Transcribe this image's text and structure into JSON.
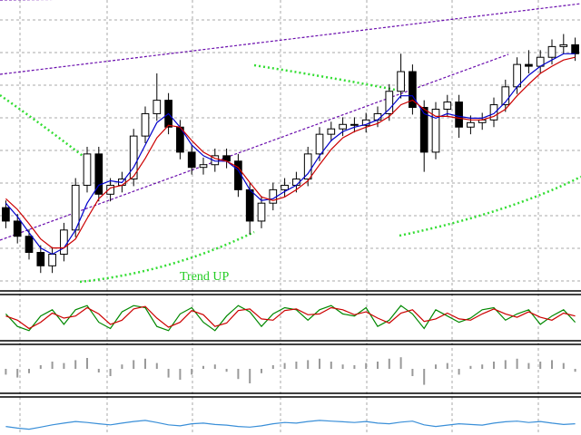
{
  "chart_data": [
    {
      "type": "candlestick",
      "annotation": "Trend UP",
      "ylim": [
        0,
        320
      ],
      "open": [
        90,
        75,
        58,
        40,
        25,
        38,
        65,
        115,
        150,
        105,
        115,
        122,
        170,
        195,
        210,
        180,
        152,
        135,
        138,
        148,
        142,
        110,
        75,
        95,
        110,
        115,
        122,
        150,
        172,
        178,
        183,
        182,
        188,
        195,
        220,
        242,
        202,
        152,
        200,
        208,
        180,
        185,
        188,
        205,
        225,
        250,
        248,
        258,
        270,
        272
      ],
      "high": [
        98,
        83,
        66,
        48,
        46,
        73,
        123,
        158,
        158,
        123,
        130,
        178,
        203,
        240,
        218,
        188,
        160,
        146,
        156,
        156,
        150,
        118,
        103,
        118,
        123,
        130,
        158,
        180,
        186,
        191,
        191,
        196,
        203,
        228,
        262,
        250,
        210,
        208,
        216,
        216,
        193,
        196,
        213,
        233,
        258,
        266,
        266,
        278,
        284,
        280
      ],
      "low": [
        67,
        50,
        32,
        17,
        17,
        30,
        57,
        107,
        97,
        97,
        107,
        114,
        162,
        187,
        172,
        144,
        127,
        127,
        130,
        134,
        102,
        60,
        67,
        87,
        102,
        107,
        114,
        142,
        164,
        170,
        174,
        174,
        180,
        187,
        212,
        194,
        130,
        144,
        192,
        168,
        172,
        177,
        180,
        197,
        217,
        240,
        240,
        250,
        262,
        254
      ],
      "close": [
        75,
        58,
        40,
        25,
        38,
        65,
        115,
        150,
        105,
        115,
        122,
        170,
        195,
        210,
        180,
        152,
        135,
        138,
        148,
        142,
        110,
        75,
        95,
        110,
        115,
        122,
        150,
        172,
        178,
        183,
        182,
        188,
        195,
        220,
        242,
        202,
        152,
        200,
        208,
        180,
        185,
        188,
        205,
        225,
        250,
        248,
        258,
        270,
        272,
        262
      ],
      "series": [
        {
          "color": "#0000cc",
          "values": [
            95,
            80,
            62,
            45,
            38,
            45,
            65,
            95,
            115,
            120,
            118,
            135,
            160,
            185,
            195,
            180,
            160,
            148,
            142,
            142,
            132,
            110,
            98,
            100,
            108,
            115,
            128,
            148,
            165,
            175,
            180,
            183,
            188,
            200,
            215,
            215,
            195,
            190,
            195,
            192,
            190,
            190,
            195,
            208,
            225,
            238,
            248,
            255,
            262,
            262
          ]
        },
        {
          "color": "#cc0000",
          "values": [
            100,
            88,
            72,
            55,
            45,
            45,
            55,
            78,
            100,
            112,
            115,
            125,
            145,
            168,
            182,
            180,
            165,
            152,
            145,
            142,
            135,
            118,
            102,
            98,
            102,
            110,
            120,
            138,
            155,
            168,
            175,
            180,
            184,
            192,
            205,
            210,
            200,
            192,
            192,
            190,
            188,
            188,
            192,
            200,
            215,
            228,
            240,
            248,
            255,
            258
          ]
        }
      ]
    },
    {
      "type": "line",
      "ylim": [
        0,
        100
      ],
      "series": [
        {
          "color": "#008800",
          "values": [
            60,
            30,
            20,
            55,
            70,
            35,
            70,
            80,
            40,
            25,
            65,
            80,
            75,
            30,
            20,
            60,
            75,
            40,
            20,
            55,
            80,
            65,
            30,
            60,
            75,
            70,
            45,
            70,
            80,
            60,
            55,
            75,
            30,
            45,
            80,
            60,
            25,
            70,
            55,
            40,
            50,
            70,
            75,
            45,
            60,
            70,
            35,
            55,
            70,
            40
          ]
        },
        {
          "color": "#cc0000",
          "values": [
            55,
            45,
            25,
            40,
            62,
            50,
            55,
            75,
            60,
            35,
            45,
            72,
            78,
            50,
            28,
            40,
            68,
            58,
            30,
            38,
            68,
            72,
            48,
            45,
            68,
            72,
            58,
            60,
            75,
            70,
            58,
            65,
            50,
            38,
            62,
            70,
            42,
            48,
            62,
            48,
            45,
            60,
            72,
            60,
            52,
            65,
            52,
            45,
            62,
            55
          ]
        }
      ]
    },
    {
      "type": "bar",
      "ylim": [
        -30,
        30
      ],
      "color": "#999999",
      "values": [
        -8,
        -12,
        -6,
        5,
        10,
        8,
        12,
        15,
        -5,
        -10,
        6,
        12,
        14,
        8,
        -12,
        -15,
        -8,
        4,
        6,
        -4,
        -14,
        -20,
        -6,
        5,
        8,
        10,
        12,
        14,
        10,
        6,
        5,
        8,
        10,
        14,
        16,
        -10,
        -22,
        6,
        8,
        -8,
        4,
        6,
        10,
        12,
        14,
        8,
        10,
        12,
        8,
        -4
      ]
    },
    {
      "type": "line",
      "ylim": [
        0,
        100
      ],
      "series": [
        {
          "color": "#3a8fd8",
          "values": [
            20,
            15,
            12,
            18,
            25,
            30,
            35,
            32,
            28,
            25,
            30,
            35,
            38,
            32,
            25,
            22,
            28,
            30,
            26,
            24,
            20,
            18,
            22,
            28,
            32,
            30,
            35,
            38,
            36,
            34,
            32,
            35,
            30,
            28,
            33,
            36,
            25,
            20,
            24,
            28,
            26,
            24,
            30,
            34,
            36,
            32,
            35,
            30,
            26,
            28
          ]
        }
      ]
    }
  ]
}
